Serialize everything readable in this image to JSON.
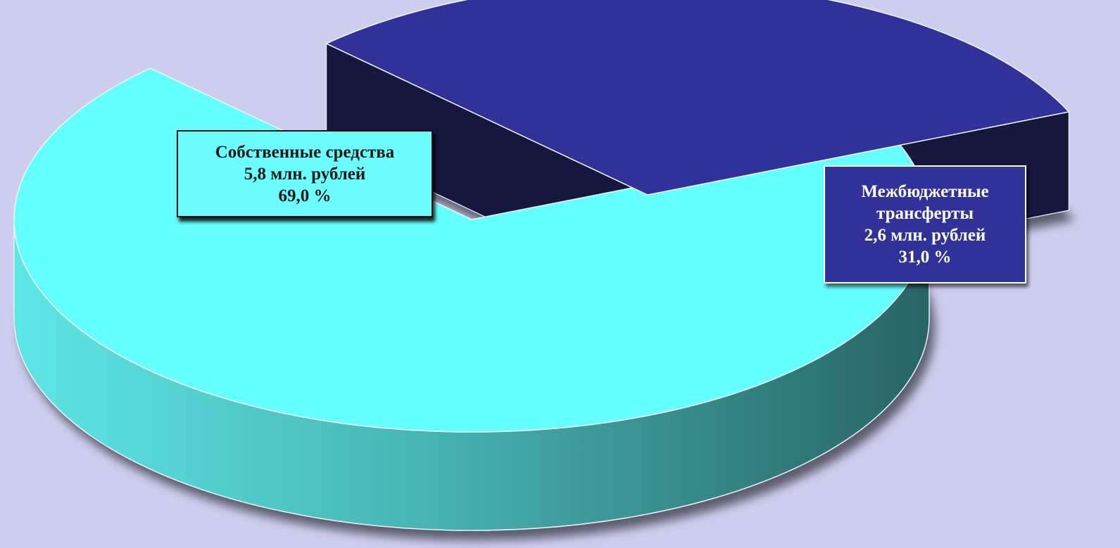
{
  "chart_data": {
    "type": "pie",
    "style": "3d-exploded",
    "title": "",
    "slices": [
      {
        "name": "Собственные средства",
        "amount_label": "5,8 млн. рублей",
        "percent_label": "69,0 %",
        "value": 5.8,
        "percent": 69.0,
        "color_top": "#66ffff",
        "color_side": "#3fb0b0",
        "color_box": "#6cfcfc"
      },
      {
        "name": "Межбюджетные трансферты",
        "name_lines": [
          "Межбюджетные",
          "трансферты"
        ],
        "amount_label": "2,6 млн. рублей",
        "percent_label": "31,0 %",
        "value": 2.6,
        "percent": 31.0,
        "color_top": "#31319a",
        "color_side": "#16163e",
        "color_box": "#31319a"
      }
    ],
    "background": "#cdcdf0"
  }
}
